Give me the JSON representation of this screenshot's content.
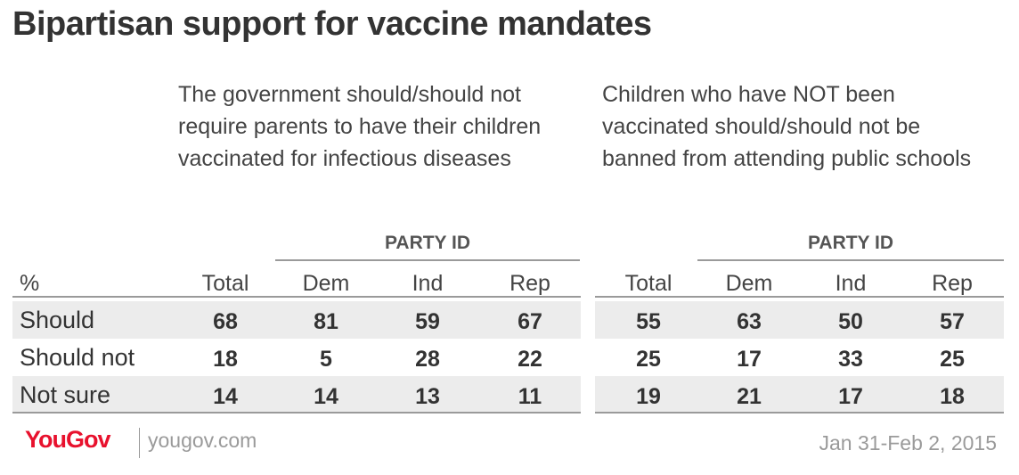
{
  "title": "Bipartisan support for vaccine mandates",
  "questions": [
    "The government should/should not require parents to have their children vaccinated for infectious diseases",
    "Children who have NOT been vaccinated should/should not be banned from attending public schools"
  ],
  "group_header": "PARTY ID",
  "unit_label": "%",
  "column_headers": [
    "Total",
    "Dem",
    "Ind",
    "Rep"
  ],
  "row_labels": [
    "Should",
    "Should not",
    "Not sure"
  ],
  "chart_data": {
    "type": "table",
    "title": "Bipartisan support for vaccine mandates",
    "columns": [
      "Total",
      "Dem",
      "Ind",
      "Rep"
    ],
    "rows": [
      "Should",
      "Should not",
      "Not sure"
    ],
    "tables": [
      {
        "question": "The government should/should not require parents to have their children vaccinated for infectious diseases",
        "values": [
          [
            68,
            81,
            59,
            67
          ],
          [
            18,
            5,
            28,
            22
          ],
          [
            14,
            14,
            13,
            11
          ]
        ]
      },
      {
        "question": "Children who have NOT been vaccinated should/should not be banned from attending public schools",
        "values": [
          [
            55,
            63,
            50,
            57
          ],
          [
            25,
            17,
            33,
            25
          ],
          [
            19,
            21,
            17,
            18
          ]
        ]
      }
    ]
  },
  "footer": {
    "logo_text": "YouGov",
    "site": "yougov.com",
    "date": "Jan 31-Feb 2, 2015"
  },
  "colors": {
    "logo": "#e8112d",
    "row_shade": "#ececec",
    "rule": "#9a9a9a",
    "text": "#333333"
  }
}
